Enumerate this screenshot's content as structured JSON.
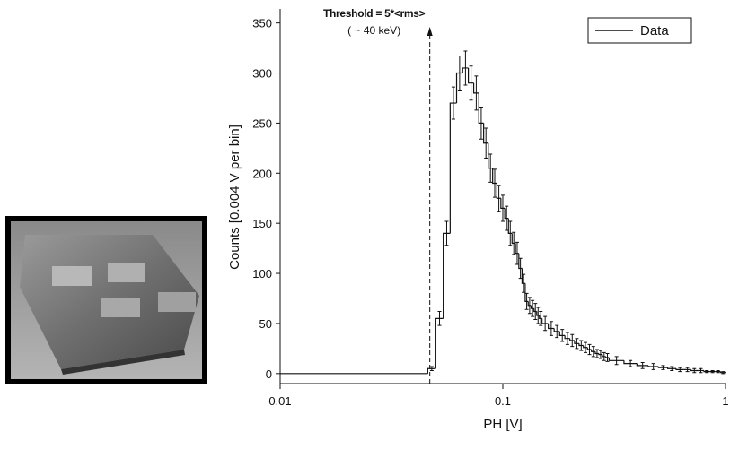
{
  "chart_data": {
    "type": "histogram",
    "x_label": "PH [V]",
    "y_label": "Counts [0.004 V per bin]",
    "xscale": "log",
    "xlim": [
      0.01,
      1
    ],
    "xticks": [
      0.01,
      0.1,
      1
    ],
    "ylim": [
      -10,
      364
    ],
    "yticks": [
      0,
      50,
      100,
      150,
      200,
      250,
      300,
      350
    ],
    "legend": "upper right",
    "series": [
      {
        "name": "Data",
        "color": "#111111",
        "bins": [
          0.01,
          0.046,
          0.05,
          0.054,
          0.058,
          0.062,
          0.066,
          0.07,
          0.074,
          0.078,
          0.082,
          0.086,
          0.09,
          0.094,
          0.098,
          0.102,
          0.106,
          0.11,
          0.114,
          0.118,
          0.122,
          0.126,
          0.13,
          0.134,
          0.138,
          0.142,
          0.146,
          0.15,
          0.16,
          0.17,
          0.18,
          0.19,
          0.2,
          0.21,
          0.22,
          0.23,
          0.24,
          0.25,
          0.26,
          0.27,
          0.28,
          0.29,
          0.3,
          0.35,
          0.4,
          0.45,
          0.5,
          0.55,
          0.6,
          0.65,
          0.7,
          0.75,
          0.8,
          0.85,
          0.9,
          0.95,
          1.0
        ],
        "values": [
          0,
          5,
          55,
          140,
          270,
          300,
          305,
          290,
          280,
          250,
          230,
          205,
          190,
          175,
          165,
          155,
          140,
          130,
          120,
          105,
          90,
          72,
          68,
          65,
          62,
          58,
          55,
          50,
          45,
          42,
          38,
          35,
          33,
          30,
          28,
          26,
          24,
          22,
          20,
          19,
          17,
          16,
          13,
          10,
          8,
          7,
          6,
          5,
          4,
          4,
          3,
          3,
          2,
          2,
          2,
          1
        ],
        "errors": [
          0,
          2,
          7,
          12,
          16,
          17,
          17,
          17,
          17,
          16,
          15,
          14,
          14,
          13,
          13,
          12,
          12,
          11,
          11,
          10,
          9,
          8,
          8,
          8,
          8,
          8,
          7,
          7,
          7,
          6,
          6,
          6,
          6,
          5,
          5,
          5,
          5,
          5,
          4,
          4,
          4,
          4,
          4,
          3,
          3,
          3,
          2,
          2,
          2,
          2,
          2,
          2,
          1,
          1,
          1,
          1
        ]
      }
    ],
    "annotation": {
      "x": 0.047,
      "lines": [
        "Threshold = 5*<rms>",
        "( ~ 40 keV)"
      ]
    }
  }
}
